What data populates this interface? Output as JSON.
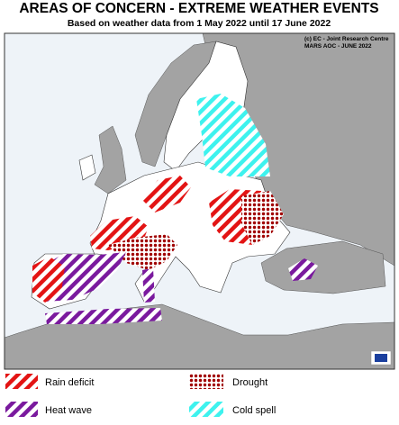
{
  "header": {
    "title": "AREAS OF CONCERN - EXTREME WEATHER EVENTS",
    "subtitle": "Based on weather data from 1 May 2022 until 17 June 2022"
  },
  "map": {
    "credits": [
      "(c) EC - Joint Research Centre",
      "MARS AOC - JUNE 2022"
    ]
  },
  "legend": {
    "items": [
      "Rain deficit",
      "Drought",
      "Heat wave",
      "Cold spell"
    ]
  }
}
